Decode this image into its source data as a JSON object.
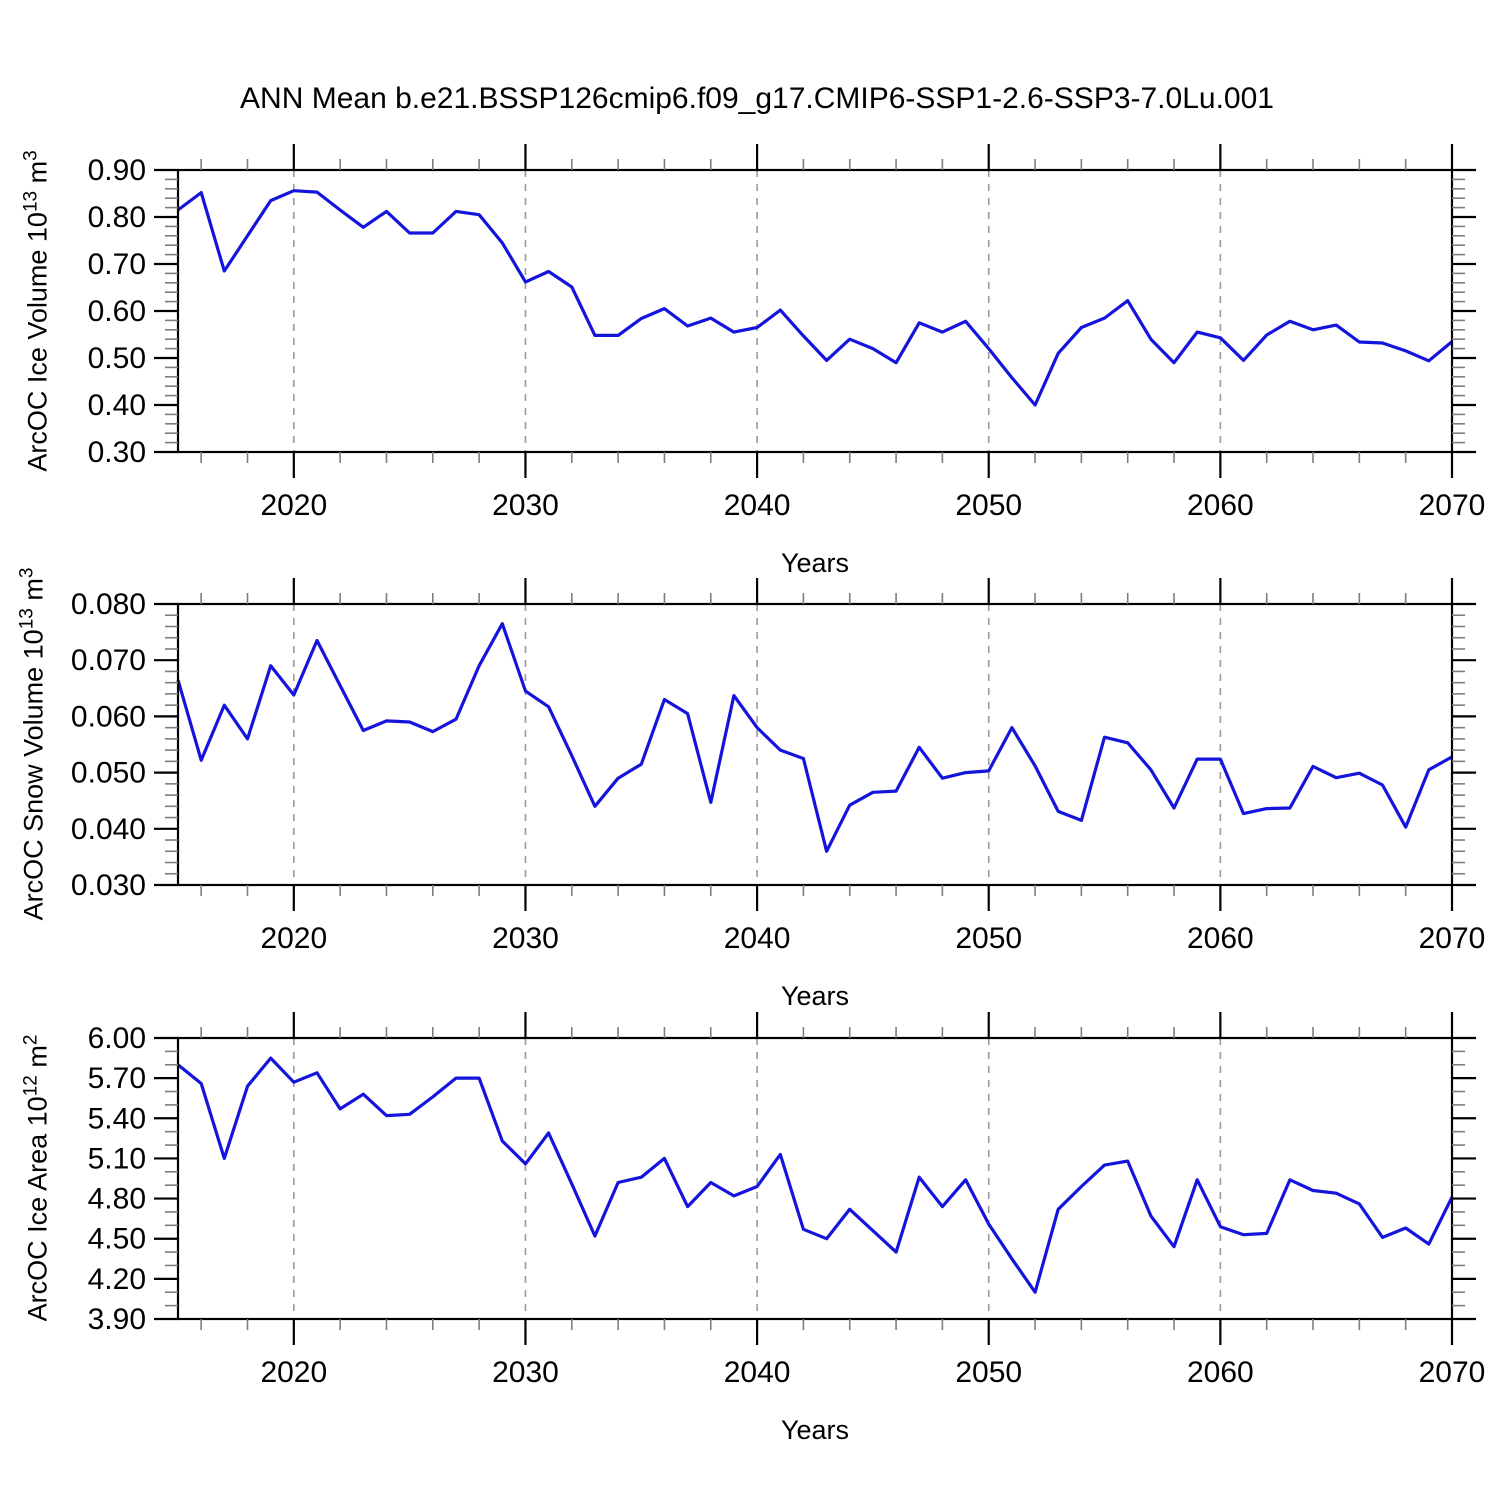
{
  "title": "ANN Mean b.e21.BSSP126cmip6.f09_g17.CMIP6-SSP1-2.6-SSP3-7.0Lu.001",
  "years": [
    2015,
    2016,
    2017,
    2018,
    2019,
    2020,
    2021,
    2022,
    2023,
    2024,
    2025,
    2026,
    2027,
    2028,
    2029,
    2030,
    2031,
    2032,
    2033,
    2034,
    2035,
    2036,
    2037,
    2038,
    2039,
    2040,
    2041,
    2042,
    2043,
    2044,
    2045,
    2046,
    2047,
    2048,
    2049,
    2050,
    2051,
    2052,
    2053,
    2054,
    2055,
    2056,
    2057,
    2058,
    2059,
    2060,
    2061,
    2062,
    2063,
    2064,
    2065,
    2066,
    2067,
    2068,
    2069,
    2070
  ],
  "styles": {
    "line_color": "#1414dc",
    "frame_color": "#000000",
    "grid_color": "#9a9a9a",
    "minor_tick_color": "#7d7d7d",
    "text_color": "#000000",
    "background": "#ffffff"
  },
  "chart_data": [
    {
      "type": "line",
      "id": "ice-volume",
      "xlabel": "Years",
      "ylabel_parts": [
        {
          "t": "ArcOC Ice Volume 10"
        },
        {
          "t": "13",
          "sup": true
        },
        {
          "t": " m"
        },
        {
          "t": "3",
          "sup": true
        }
      ],
      "x_shared": "years",
      "xlim": [
        2015,
        2070
      ],
      "ylim": [
        0.3,
        0.9
      ],
      "y_major_step": 0.1,
      "y_minor_step": 0.02,
      "y_tick_decimals": 2,
      "x_major_ticks": [
        2020,
        2030,
        2040,
        2050,
        2060,
        2070
      ],
      "x_minor_step": 2,
      "gridline_years": [
        2020,
        2030,
        2040,
        2050,
        2060
      ],
      "grid": "vertical-dashed",
      "values": [
        0.815,
        0.852,
        0.685,
        0.76,
        0.835,
        0.856,
        0.853,
        0.815,
        0.778,
        0.812,
        0.766,
        0.766,
        0.812,
        0.805,
        0.745,
        0.662,
        0.684,
        0.651,
        0.548,
        0.548,
        0.584,
        0.605,
        0.568,
        0.585,
        0.555,
        0.565,
        0.602,
        0.547,
        0.495,
        0.54,
        0.52,
        0.49,
        0.575,
        0.555,
        0.578,
        0.52,
        0.458,
        0.4,
        0.51,
        0.565,
        0.585,
        0.622,
        0.54,
        0.49,
        0.555,
        0.543,
        0.495,
        0.549,
        0.578,
        0.56,
        0.57,
        0.534,
        0.532,
        0.515,
        0.494,
        0.535
      ]
    },
    {
      "type": "line",
      "id": "snow-volume",
      "xlabel": "Years",
      "ylabel_parts": [
        {
          "t": "ArcOC Snow Volume 10"
        },
        {
          "t": "13",
          "sup": true
        },
        {
          "t": " m"
        },
        {
          "t": "3",
          "sup": true
        }
      ],
      "x_shared": "years",
      "xlim": [
        2015,
        2070
      ],
      "ylim": [
        0.03,
        0.08
      ],
      "y_major_step": 0.01,
      "y_minor_step": 0.002,
      "y_tick_decimals": 3,
      "x_major_ticks": [
        2020,
        2030,
        2040,
        2050,
        2060,
        2070
      ],
      "x_minor_step": 2,
      "gridline_years": [
        2020,
        2030,
        2040,
        2050,
        2060
      ],
      "grid": "vertical-dashed",
      "values": [
        0.0665,
        0.0522,
        0.062,
        0.056,
        0.069,
        0.0638,
        0.0735,
        0.0655,
        0.0575,
        0.0592,
        0.059,
        0.0573,
        0.0595,
        0.069,
        0.0765,
        0.0645,
        0.0617,
        0.053,
        0.044,
        0.049,
        0.0515,
        0.063,
        0.0605,
        0.0447,
        0.0637,
        0.058,
        0.054,
        0.0525,
        0.036,
        0.0442,
        0.0465,
        0.0467,
        0.0545,
        0.049,
        0.05,
        0.0503,
        0.058,
        0.0512,
        0.0431,
        0.0415,
        0.0563,
        0.0553,
        0.0505,
        0.0437,
        0.0524,
        0.0524,
        0.0427,
        0.0436,
        0.0437,
        0.0511,
        0.0491,
        0.0499,
        0.0478,
        0.0403,
        0.0505,
        0.0528
      ]
    },
    {
      "type": "line",
      "id": "ice-area",
      "xlabel": "Years",
      "ylabel_parts": [
        {
          "t": "ArcOC Ice Area 10"
        },
        {
          "t": "12",
          "sup": true
        },
        {
          "t": " m"
        },
        {
          "t": "2",
          "sup": true
        }
      ],
      "x_shared": "years",
      "xlim": [
        2015,
        2070
      ],
      "ylim": [
        3.9,
        6.0
      ],
      "y_major_step": 0.3,
      "y_minor_step": 0.1,
      "y_tick_decimals": 2,
      "x_major_ticks": [
        2020,
        2030,
        2040,
        2050,
        2060,
        2070
      ],
      "x_minor_step": 2,
      "gridline_years": [
        2020,
        2030,
        2040,
        2050,
        2060
      ],
      "grid": "vertical-dashed",
      "values": [
        5.8,
        5.66,
        5.1,
        5.64,
        5.85,
        5.67,
        5.74,
        5.47,
        5.58,
        5.42,
        5.43,
        5.56,
        5.7,
        5.7,
        5.23,
        5.06,
        5.29,
        4.91,
        4.52,
        4.92,
        4.96,
        5.1,
        4.74,
        4.92,
        4.82,
        4.89,
        5.13,
        4.57,
        4.5,
        4.72,
        4.56,
        4.4,
        4.96,
        4.74,
        4.94,
        4.61,
        4.35,
        4.1,
        4.72,
        4.89,
        5.05,
        5.08,
        4.67,
        4.44,
        4.94,
        4.59,
        4.53,
        4.54,
        4.94,
        4.86,
        4.84,
        4.76,
        4.51,
        4.58,
        4.46,
        4.81
      ]
    }
  ]
}
